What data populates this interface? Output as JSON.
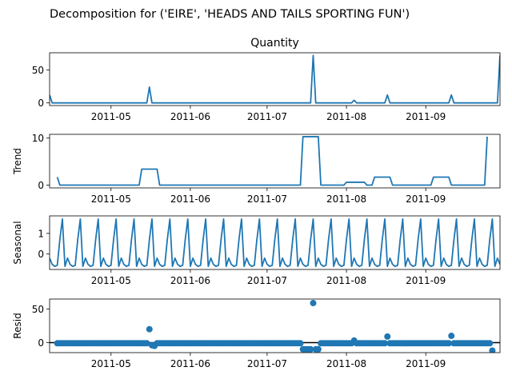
{
  "chart_data": {
    "type": "line",
    "title": "Decomposition for ('EIRE', 'HEADS AND TAILS SPORTING FUN')",
    "x_range": [
      "2011-04-07",
      "2011-09-30"
    ],
    "x_tick_labels": [
      "2011-05",
      "2011-06",
      "2011-07",
      "2011-08",
      "2011-09"
    ],
    "x_tick_dates": [
      "2011-05-01",
      "2011-06-01",
      "2011-07-01",
      "2011-08-01",
      "2011-09-01"
    ],
    "line_color": "#1f77b4",
    "panels": [
      {
        "id": "quantity",
        "title": "Quantity",
        "ylabel": "",
        "type": "line",
        "ylim": [
          -4,
          76
        ],
        "yticks": [
          0,
          50
        ],
        "points": [
          [
            "2011-04-07",
            12
          ],
          [
            "2011-04-08",
            0
          ],
          [
            "2011-05-15",
            0
          ],
          [
            "2011-05-16",
            24
          ],
          [
            "2011-05-17",
            0
          ],
          [
            "2011-07-18",
            0
          ],
          [
            "2011-07-19",
            72
          ],
          [
            "2011-07-20",
            0
          ],
          [
            "2011-08-03",
            0
          ],
          [
            "2011-08-04",
            4
          ],
          [
            "2011-08-05",
            0
          ],
          [
            "2011-08-16",
            0
          ],
          [
            "2011-08-17",
            12
          ],
          [
            "2011-08-18",
            0
          ],
          [
            "2011-09-10",
            0
          ],
          [
            "2011-09-11",
            12
          ],
          [
            "2011-09-12",
            0
          ],
          [
            "2011-09-29",
            0
          ],
          [
            "2011-09-30",
            72
          ]
        ]
      },
      {
        "id": "trend",
        "title": "",
        "ylabel": "Trend",
        "type": "line",
        "ylim": [
          -0.6,
          10.8
        ],
        "yticks": [
          0,
          10
        ],
        "points": [
          [
            "2011-04-10",
            1.7
          ],
          [
            "2011-04-11",
            0
          ],
          [
            "2011-05-12",
            0
          ],
          [
            "2011-05-13",
            3.4
          ],
          [
            "2011-05-19",
            3.4
          ],
          [
            "2011-05-20",
            0
          ],
          [
            "2011-07-14",
            0
          ],
          [
            "2011-07-15",
            10.3
          ],
          [
            "2011-07-21",
            10.3
          ],
          [
            "2011-07-22",
            0
          ],
          [
            "2011-07-31",
            0
          ],
          [
            "2011-08-01",
            0.6
          ],
          [
            "2011-08-08",
            0.6
          ],
          [
            "2011-08-09",
            0
          ],
          [
            "2011-08-11",
            0
          ],
          [
            "2011-08-12",
            1.7
          ],
          [
            "2011-08-18",
            1.7
          ],
          [
            "2011-08-19",
            0
          ],
          [
            "2011-09-03",
            0
          ],
          [
            "2011-09-04",
            1.7
          ],
          [
            "2011-09-10",
            1.7
          ],
          [
            "2011-09-11",
            0
          ],
          [
            "2011-09-24",
            0
          ],
          [
            "2011-09-25",
            10.3
          ]
        ]
      },
      {
        "id": "seasonal",
        "title": "",
        "ylabel": "Seasonal",
        "type": "line",
        "ylim": [
          -0.75,
          1.85
        ],
        "yticks": [
          0,
          1
        ],
        "pattern": [
          -0.2,
          -0.5,
          -0.6,
          -0.55,
          0.7,
          1.7,
          -0.6
        ],
        "start": "2011-04-07",
        "end": "2011-09-30"
      },
      {
        "id": "resid",
        "title": "",
        "ylabel": "Resid",
        "type": "scatter",
        "ylim": [
          -15,
          65
        ],
        "yticks": [
          0,
          50
        ],
        "zero_line": true,
        "start": "2011-04-10",
        "end": "2011-09-27",
        "baseline_value": -1,
        "outliers": [
          [
            "2011-05-16",
            20
          ],
          [
            "2011-05-17",
            -4
          ],
          [
            "2011-05-18",
            -5
          ],
          [
            "2011-07-15",
            -10
          ],
          [
            "2011-07-16",
            -10
          ],
          [
            "2011-07-17",
            -10
          ],
          [
            "2011-07-18",
            -10
          ],
          [
            "2011-07-19",
            59
          ],
          [
            "2011-07-20",
            -10
          ],
          [
            "2011-07-21",
            -10
          ],
          [
            "2011-08-04",
            3
          ],
          [
            "2011-08-17",
            9
          ],
          [
            "2011-09-11",
            10
          ],
          [
            "2011-09-27",
            -12
          ]
        ]
      }
    ]
  }
}
